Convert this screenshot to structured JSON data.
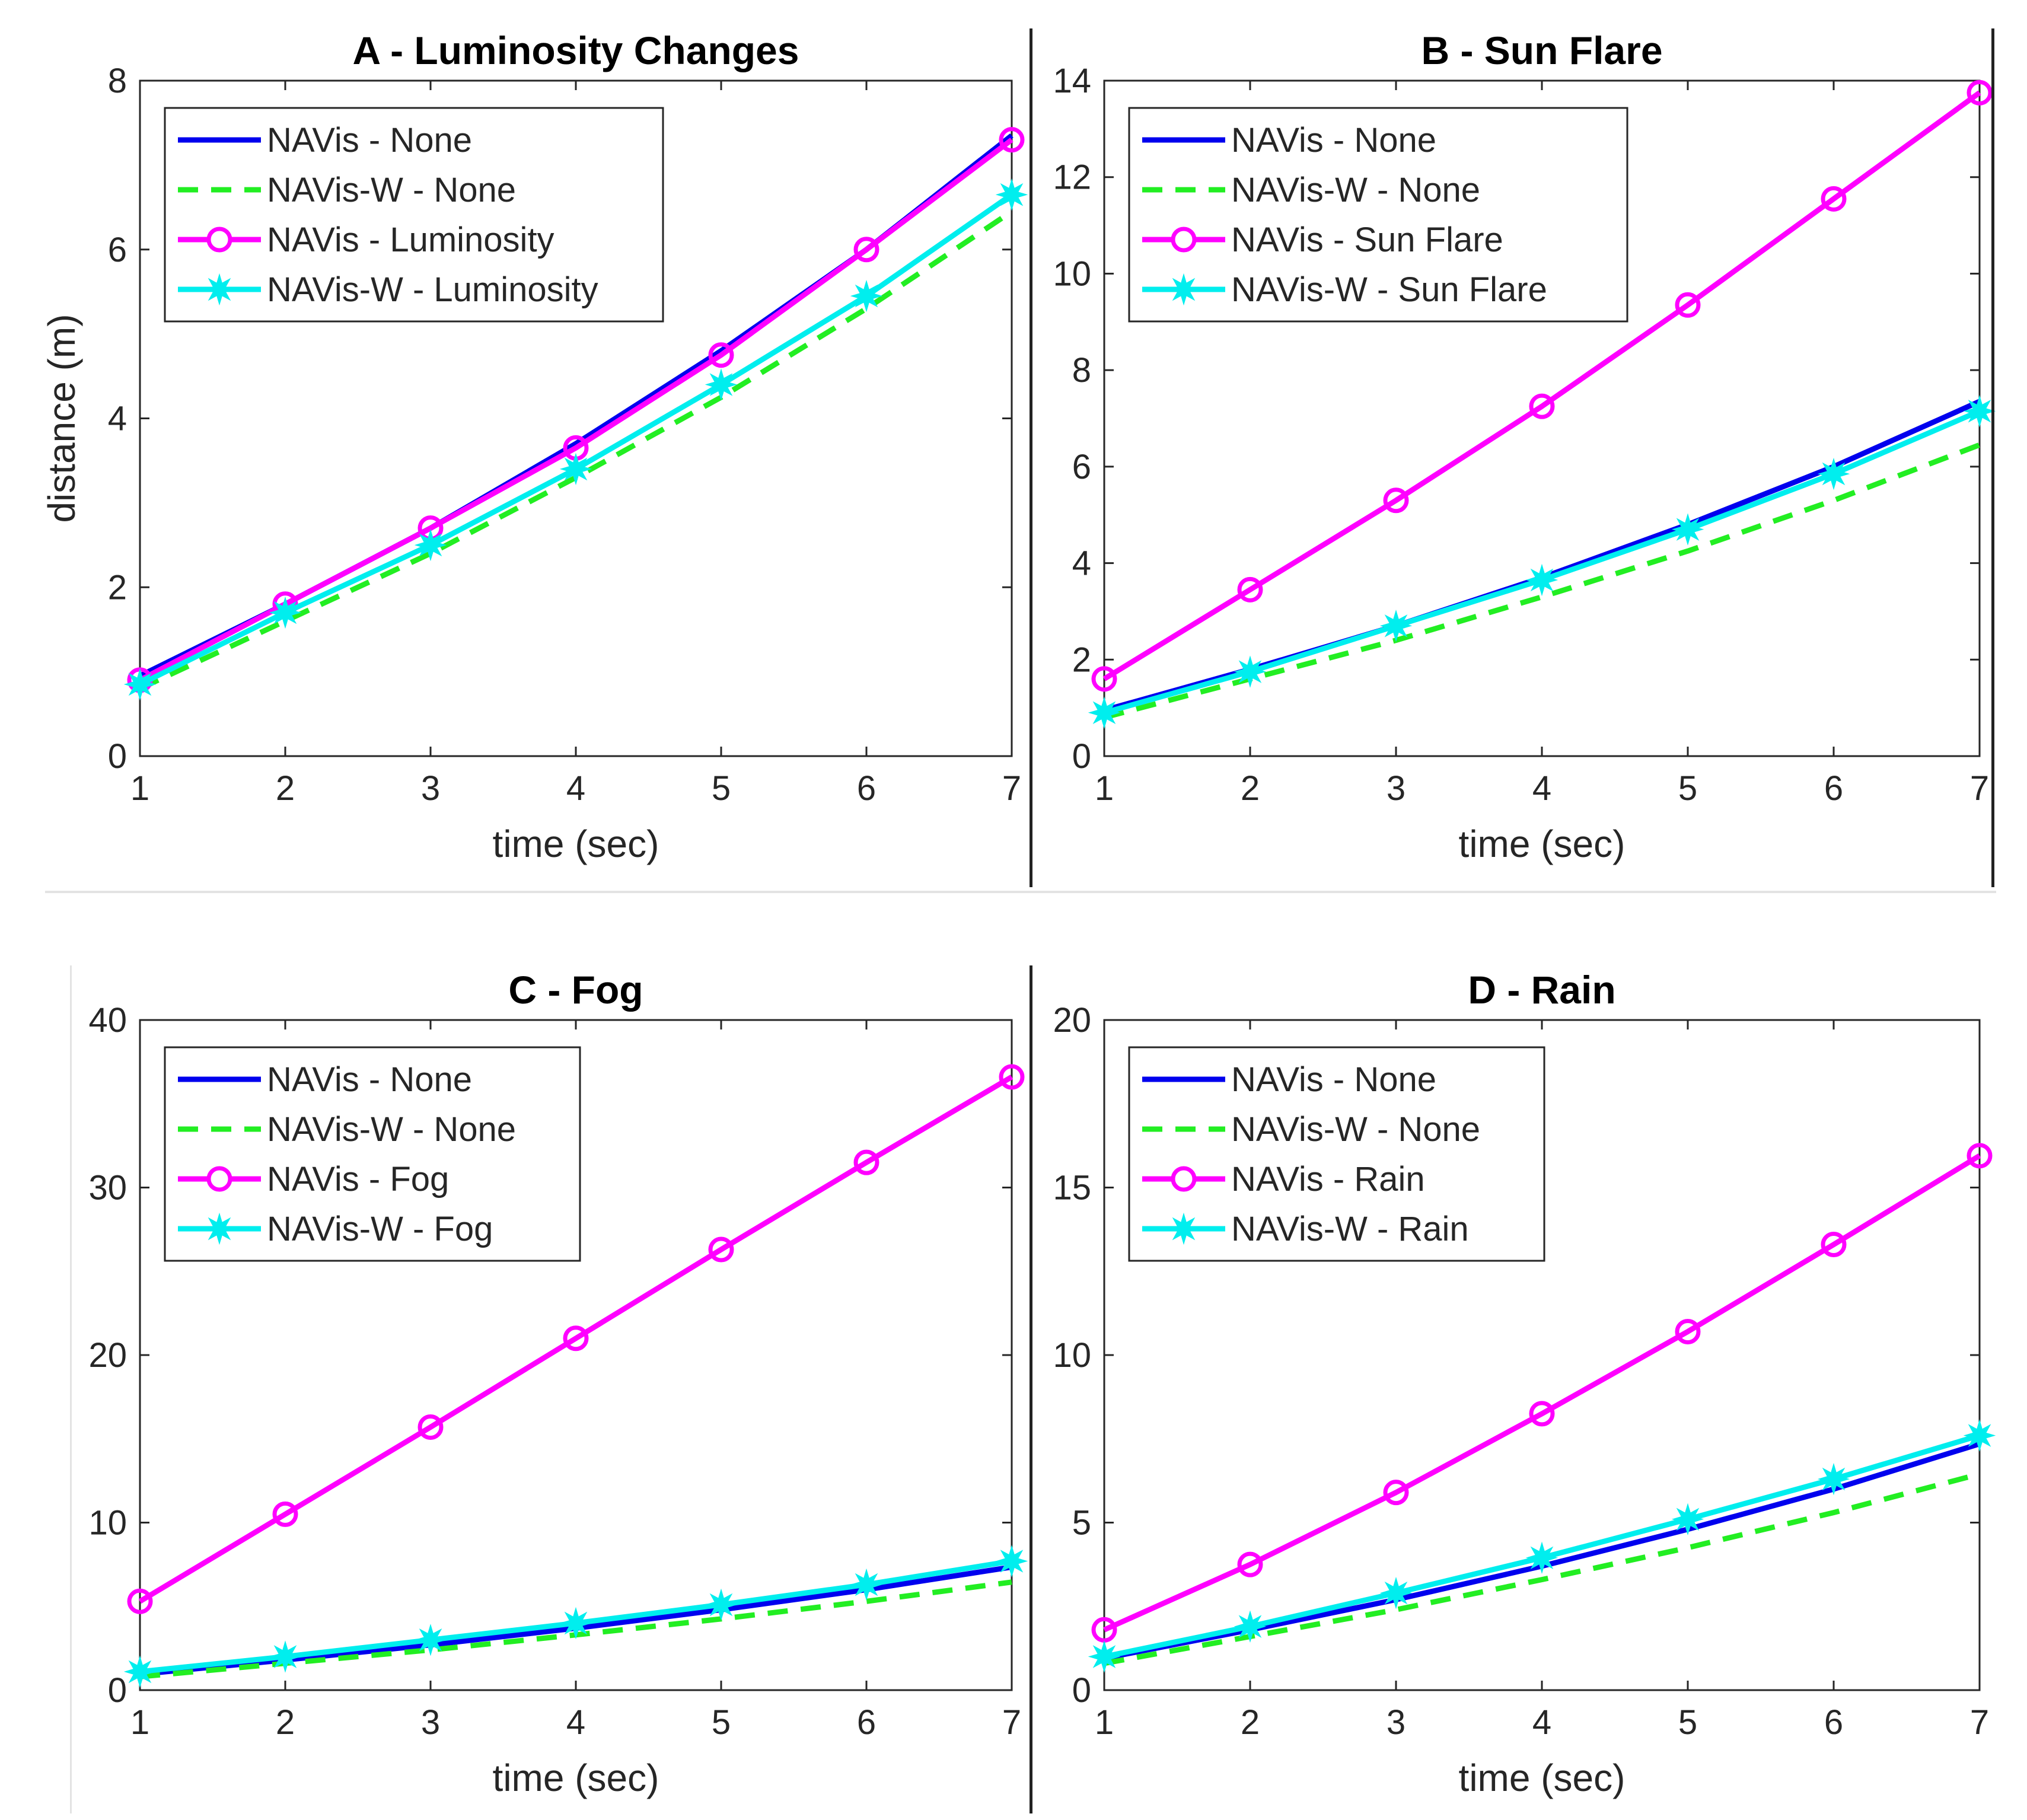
{
  "colors": {
    "navis_none": "#0000ee",
    "navisw_none": "#22ee22",
    "navis_cond": "#ff00ff",
    "navisw_cond": "#00eeee",
    "axis": "#262626",
    "grid_box": "#262626"
  },
  "chart_data": [
    {
      "id": "A",
      "type": "line",
      "title": "A - Luminosity Changes",
      "xlabel": "time (sec)",
      "ylabel": "distance (m)",
      "x": [
        1,
        2,
        3,
        4,
        5,
        6,
        7
      ],
      "xlim": [
        1,
        7
      ],
      "ylim": [
        0,
        8
      ],
      "xticks": [
        "1",
        "2",
        "3",
        "4",
        "5",
        "6",
        "7"
      ],
      "yticks": [
        0,
        2,
        4,
        6,
        8
      ],
      "ytick_labels": [
        "0",
        "2",
        "4",
        "6",
        "8"
      ],
      "legend_position": "top-left",
      "series": [
        {
          "name": "NAVis - None",
          "style": "solid",
          "marker": "none",
          "color_key": "navis_none",
          "values": [
            0.95,
            1.8,
            2.7,
            3.7,
            4.8,
            6.0,
            7.35
          ]
        },
        {
          "name": "NAVis-W - None",
          "style": "dashed",
          "marker": "none",
          "color_key": "navisw_none",
          "values": [
            0.8,
            1.6,
            2.4,
            3.3,
            4.25,
            5.3,
            6.45
          ]
        },
        {
          "name": "NAVis - Luminosity",
          "style": "solid",
          "marker": "circle",
          "color_key": "navis_cond",
          "values": [
            0.9,
            1.8,
            2.7,
            3.65,
            4.75,
            6.0,
            7.3
          ]
        },
        {
          "name": "NAVis-W - Luminosity",
          "style": "solid",
          "marker": "star",
          "color_key": "navisw_cond",
          "values": [
            0.85,
            1.7,
            2.5,
            3.4,
            4.4,
            5.45,
            6.65
          ]
        }
      ]
    },
    {
      "id": "B",
      "type": "line",
      "title": "B - Sun Flare",
      "xlabel": "time (sec)",
      "ylabel": "",
      "x": [
        1,
        2,
        3,
        4,
        5,
        6,
        7
      ],
      "xlim": [
        1,
        7
      ],
      "ylim": [
        0,
        14
      ],
      "xticks": [
        "1",
        "2",
        "3",
        "4",
        "5",
        "6",
        "7"
      ],
      "yticks": [
        0,
        2,
        4,
        6,
        8,
        10,
        12,
        14
      ],
      "ytick_labels": [
        "0",
        "2",
        "4",
        "6",
        "8",
        "10",
        "12",
        "14"
      ],
      "legend_position": "top-left",
      "series": [
        {
          "name": "NAVis - None",
          "style": "solid",
          "marker": "none",
          "color_key": "navis_none",
          "values": [
            0.95,
            1.8,
            2.7,
            3.7,
            4.8,
            6.0,
            7.35
          ]
        },
        {
          "name": "NAVis-W - None",
          "style": "dashed",
          "marker": "none",
          "color_key": "navisw_none",
          "values": [
            0.8,
            1.6,
            2.4,
            3.3,
            4.25,
            5.3,
            6.45
          ]
        },
        {
          "name": "NAVis - Sun Flare",
          "style": "solid",
          "marker": "circle",
          "color_key": "navis_cond",
          "values": [
            1.6,
            3.45,
            5.3,
            7.25,
            9.35,
            11.55,
            13.75
          ]
        },
        {
          "name": "NAVis-W - Sun Flare",
          "style": "solid",
          "marker": "star",
          "color_key": "navisw_cond",
          "values": [
            0.9,
            1.75,
            2.7,
            3.65,
            4.7,
            5.85,
            7.15
          ]
        }
      ]
    },
    {
      "id": "C",
      "type": "line",
      "title": "C - Fog",
      "xlabel": "time (sec)",
      "ylabel": "",
      "x": [
        1,
        2,
        3,
        4,
        5,
        6,
        7
      ],
      "xlim": [
        1,
        7
      ],
      "ylim": [
        0,
        40
      ],
      "xticks": [
        "1",
        "2",
        "3",
        "4",
        "5",
        "6",
        "7"
      ],
      "yticks": [
        0,
        10,
        20,
        30,
        40
      ],
      "ytick_labels": [
        "0",
        "10",
        "20",
        "30",
        "40"
      ],
      "legend_position": "top-left",
      "series": [
        {
          "name": "NAVis - None",
          "style": "solid",
          "marker": "none",
          "color_key": "navis_none",
          "values": [
            0.95,
            1.8,
            2.7,
            3.7,
            4.8,
            6.0,
            7.35
          ]
        },
        {
          "name": "NAVis-W - None",
          "style": "dashed",
          "marker": "none",
          "color_key": "navisw_none",
          "values": [
            0.8,
            1.6,
            2.4,
            3.3,
            4.25,
            5.3,
            6.45
          ]
        },
        {
          "name": "NAVis - Fog",
          "style": "solid",
          "marker": "circle",
          "color_key": "navis_cond",
          "values": [
            5.3,
            10.5,
            15.7,
            21.0,
            26.3,
            31.5,
            36.6
          ]
        },
        {
          "name": "NAVis-W - Fog",
          "style": "solid",
          "marker": "star",
          "color_key": "navisw_cond",
          "values": [
            1.1,
            2.0,
            3.0,
            4.0,
            5.1,
            6.3,
            7.7
          ]
        }
      ]
    },
    {
      "id": "D",
      "type": "line",
      "title": "D - Rain",
      "xlabel": "time (sec)",
      "ylabel": "",
      "x": [
        1,
        2,
        3,
        4,
        5,
        6,
        7
      ],
      "xlim": [
        1,
        7
      ],
      "ylim": [
        0,
        20
      ],
      "xticks": [
        "1",
        "2",
        "3",
        "4",
        "5",
        "6",
        "7"
      ],
      "yticks": [
        0,
        5,
        10,
        15,
        20
      ],
      "ytick_labels": [
        "0",
        "5",
        "10",
        "15",
        "20"
      ],
      "legend_position": "top-left",
      "series": [
        {
          "name": "NAVis - None",
          "style": "solid",
          "marker": "none",
          "color_key": "navis_none",
          "values": [
            0.95,
            1.8,
            2.7,
            3.7,
            4.8,
            6.0,
            7.35
          ]
        },
        {
          "name": "NAVis-W - None",
          "style": "dashed",
          "marker": "none",
          "color_key": "navisw_none",
          "values": [
            0.8,
            1.6,
            2.4,
            3.3,
            4.25,
            5.3,
            6.45
          ]
        },
        {
          "name": "NAVis - Rain",
          "style": "solid",
          "marker": "circle",
          "color_key": "navis_cond",
          "values": [
            1.8,
            3.75,
            5.9,
            8.25,
            10.7,
            13.3,
            15.95
          ]
        },
        {
          "name": "NAVis-W - Rain",
          "style": "solid",
          "marker": "star",
          "color_key": "navisw_cond",
          "values": [
            1.0,
            1.9,
            2.9,
            3.95,
            5.1,
            6.3,
            7.6
          ]
        }
      ]
    }
  ]
}
